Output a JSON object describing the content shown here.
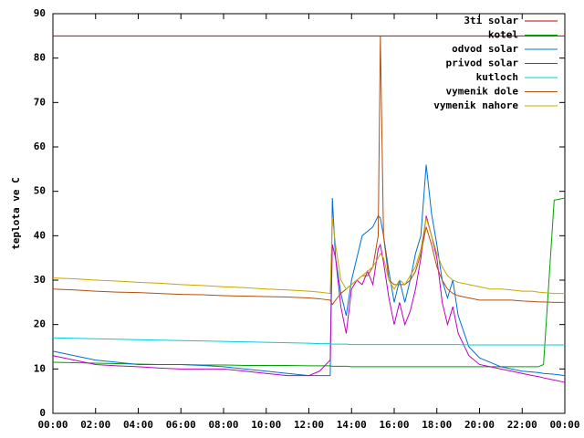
{
  "chart_data": {
    "type": "line",
    "y_label": "teplota ve C",
    "x": [
      0,
      1,
      2,
      3,
      4,
      5,
      6,
      7,
      8,
      9,
      10,
      11,
      12,
      12.5,
      13,
      13.1,
      13.25,
      13.5,
      13.75,
      14,
      14.25,
      14.5,
      14.75,
      15,
      15.25,
      15.35,
      15.5,
      15.75,
      16,
      16.25,
      16.5,
      16.75,
      17,
      17.25,
      17.5,
      17.75,
      18,
      18.25,
      18.5,
      18.75,
      19,
      19.5,
      20,
      20.5,
      21,
      21.5,
      22,
      22.5,
      22.75,
      23,
      23.5,
      24
    ],
    "xlim": [
      0,
      24
    ],
    "xticks": [
      {
        "value": 0,
        "label": "00:00"
      },
      {
        "value": 2,
        "label": "02:00"
      },
      {
        "value": 4,
        "label": "04:00"
      },
      {
        "value": 6,
        "label": "06:00"
      },
      {
        "value": 8,
        "label": "08:00"
      },
      {
        "value": 10,
        "label": "10:00"
      },
      {
        "value": 12,
        "label": "12:00"
      },
      {
        "value": 14,
        "label": "14:00"
      },
      {
        "value": 16,
        "label": "16:00"
      },
      {
        "value": 18,
        "label": "18:00"
      },
      {
        "value": 20,
        "label": "20:00"
      },
      {
        "value": 22,
        "label": "22:00"
      },
      {
        "value": 24,
        "label": "00:00"
      }
    ],
    "ylim": [
      0,
      90
    ],
    "yticks": [
      0,
      10,
      20,
      30,
      40,
      50,
      60,
      70,
      80,
      90
    ],
    "grid": false,
    "legend": "top-right",
    "series": [
      {
        "name": "3ti solar",
        "color": "#cc0000",
        "values": [
          85,
          85,
          85,
          85,
          85,
          85,
          85,
          85,
          85,
          85,
          85,
          85,
          85,
          85,
          85,
          85,
          85,
          85,
          85,
          85,
          85,
          85,
          85,
          85,
          85,
          85,
          85,
          85,
          85,
          85,
          85,
          85,
          85,
          85,
          85,
          85,
          85,
          85,
          85,
          85,
          85,
          85,
          85,
          85,
          85,
          85,
          85,
          85,
          85,
          85,
          85,
          85
        ]
      },
      {
        "name": "kotel",
        "color": "#00a000",
        "values": [
          11.5,
          11.4,
          11.3,
          11.2,
          11.1,
          11,
          11,
          10.9,
          10.9,
          10.8,
          10.8,
          10.8,
          10.7,
          10.7,
          10.7,
          10.6,
          10.6,
          10.6,
          10.6,
          10.5,
          10.5,
          10.5,
          10.5,
          10.5,
          10.5,
          10.5,
          10.5,
          10.5,
          10.5,
          10.5,
          10.5,
          10.5,
          10.5,
          10.5,
          10.5,
          10.5,
          10.5,
          10.5,
          10.5,
          10.5,
          10.5,
          10.5,
          10.5,
          10.5,
          10.5,
          10.5,
          10.5,
          10.5,
          10.5,
          11,
          48,
          48.5
        ]
      },
      {
        "name": "odvod solar",
        "color": "#0070d0",
        "values": [
          14,
          13,
          12,
          11.5,
          11,
          11,
          11,
          10.8,
          10.5,
          10,
          9.5,
          9,
          8.5,
          8.5,
          8.5,
          48.5,
          35,
          27,
          22,
          30,
          35,
          40,
          41,
          42,
          44.5,
          44,
          40,
          32,
          25,
          30,
          25,
          30,
          36,
          40,
          56,
          45,
          38,
          30,
          26,
          30,
          22,
          15,
          12.5,
          11.5,
          10.5,
          10,
          9.5,
          9.3,
          9.2,
          9,
          8.8,
          8.5
        ]
      },
      {
        "name": "privod solar",
        "color": "#c000c0",
        "values": [
          13,
          12,
          11,
          10.7,
          10.5,
          10.2,
          10,
          10,
          10,
          9.5,
          9,
          8.5,
          8.5,
          9.5,
          12,
          38,
          35,
          24,
          18,
          28,
          30,
          29,
          32,
          29,
          37,
          38,
          34,
          26,
          20,
          25,
          20,
          23,
          28,
          35,
          44.5,
          40,
          35,
          25,
          20,
          24,
          18,
          13,
          11,
          10.5,
          10,
          9.5,
          9,
          8.5,
          8.3,
          8,
          7.5,
          7
        ]
      },
      {
        "name": "kutloch",
        "color": "#00d0d0",
        "values": [
          17,
          16.9,
          16.8,
          16.7,
          16.6,
          16.5,
          16.4,
          16.3,
          16.2,
          16.1,
          16,
          15.9,
          15.8,
          15.7,
          15.7,
          15.6,
          15.6,
          15.6,
          15.6,
          15.5,
          15.5,
          15.5,
          15.5,
          15.5,
          15.5,
          15.5,
          15.5,
          15.5,
          15.5,
          15.5,
          15.5,
          15.5,
          15.5,
          15.5,
          15.5,
          15.5,
          15.5,
          15.5,
          15.5,
          15.5,
          15.5,
          15.4,
          15.4,
          15.4,
          15.4,
          15.4,
          15.4,
          15.4,
          15.4,
          15.4,
          15.4,
          15.4
        ]
      },
      {
        "name": "vymenik dole",
        "color": "#b05010",
        "values": [
          28,
          27.8,
          27.5,
          27.3,
          27.2,
          27,
          26.8,
          26.7,
          26.5,
          26.4,
          26.3,
          26.2,
          26,
          25.8,
          25.5,
          24.5,
          25.5,
          27,
          28,
          29,
          30,
          31,
          31,
          33,
          40,
          85,
          40,
          30,
          29,
          29,
          29,
          30,
          32,
          36,
          42,
          38,
          33,
          30,
          28,
          27,
          26.5,
          26,
          25.5,
          25.5,
          25.5,
          25.5,
          25.3,
          25.2,
          25.1,
          25.1,
          25,
          25
        ]
      },
      {
        "name": "vymenik nahore",
        "color": "#c8a800",
        "values": [
          30.5,
          30.3,
          30,
          29.8,
          29.5,
          29.3,
          29,
          28.8,
          28.5,
          28.3,
          28,
          27.8,
          27.5,
          27.3,
          27,
          44,
          38,
          30,
          28,
          29,
          30,
          31,
          32,
          33,
          35,
          36,
          35,
          30,
          28,
          30,
          29,
          31,
          33,
          37,
          44,
          40,
          36,
          33,
          31,
          30,
          29.5,
          29,
          28.5,
          28,
          28,
          27.8,
          27.5,
          27.5,
          27.3,
          27.2,
          27,
          27
        ]
      }
    ]
  }
}
